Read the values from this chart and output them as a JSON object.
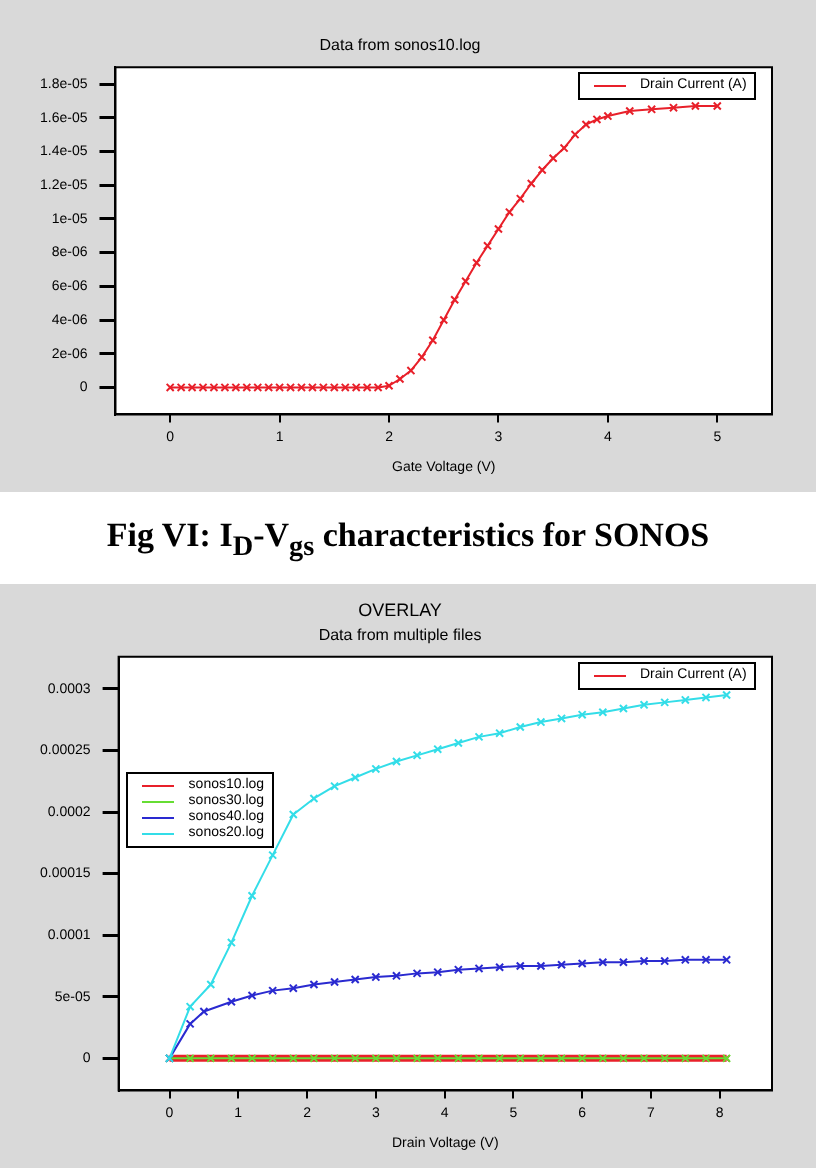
{
  "chart_data": [
    {
      "type": "line",
      "subtitle": "Data from sonos10.log",
      "xlabel": "Gate Voltage (V)",
      "annotations": [
        "Fig VI: I$_{D}$-V$_{gs}$ characteristics for SONOS"
      ],
      "legend": "top right",
      "marker": "cross",
      "grid": false,
      "xlim": [
        -0.5,
        5.5
      ],
      "xticks": [
        0,
        1,
        2,
        3,
        4,
        5
      ],
      "ylim": [
        -1.6e-06,
        1.9e-05
      ],
      "yticks": [
        0,
        {
          "value": 2e-06,
          "label": "2e-06"
        },
        {
          "value": 4e-06,
          "label": "4e-06"
        },
        {
          "value": 6e-06,
          "label": "6e-06"
        },
        {
          "value": 8e-06,
          "label": "8e-06"
        },
        {
          "value": 1e-05,
          "label": "1e-05"
        },
        {
          "value": 1.2e-05,
          "label": "1.2e-05"
        },
        {
          "value": 1.4e-05,
          "label": "1.4e-05"
        },
        {
          "value": 1.6e-05,
          "label": "1.6e-05"
        },
        {
          "value": 1.8e-05,
          "label": "1.8e-05"
        }
      ],
      "series": [
        {
          "name": "Drain Current (A)",
          "color": "#e8202a",
          "x": [
            0,
            0.1,
            0.2,
            0.3,
            0.4,
            0.5,
            0.6,
            0.7,
            0.8,
            0.9,
            1.0,
            1.1,
            1.2,
            1.3,
            1.4,
            1.5,
            1.6,
            1.7,
            1.8,
            1.9,
            2.0,
            2.1,
            2.2,
            2.3,
            2.4,
            2.5,
            2.6,
            2.7,
            2.8,
            2.9,
            3.0,
            3.1,
            3.2,
            3.3,
            3.4,
            3.5,
            3.6,
            3.7,
            3.8,
            3.9,
            4.0,
            4.2,
            4.4,
            4.6,
            4.8,
            5.0
          ],
          "values": [
            0,
            0,
            0,
            0,
            0,
            0,
            0,
            0,
            0,
            0,
            0,
            0,
            0,
            0,
            0,
            0,
            0,
            0,
            0,
            0,
            1e-07,
            5e-07,
            1e-06,
            1.8e-06,
            2.8e-06,
            4e-06,
            5.2e-06,
            6.3e-06,
            7.4e-06,
            8.4e-06,
            9.4e-06,
            1.04e-05,
            1.12e-05,
            1.21e-05,
            1.29e-05,
            1.36e-05,
            1.42e-05,
            1.5e-05,
            1.56e-05,
            1.59e-05,
            1.61e-05,
            1.64e-05,
            1.65e-05,
            1.66e-05,
            1.67e-05,
            1.67e-05
          ]
        }
      ]
    },
    {
      "type": "line",
      "title": "OVERLAY",
      "subtitle": "Data from multiple files",
      "xlabel": "Drain Voltage (V)",
      "legend_title": "Drain Current (A)",
      "legend": "left",
      "marker": "cross",
      "grid": false,
      "xlim": [
        -0.74,
        8.76
      ],
      "xticks": [
        0,
        1,
        2,
        3,
        4,
        5,
        6,
        7,
        8
      ],
      "ylim": [
        -2.6e-05,
        0.000326
      ],
      "yticks": [
        0,
        {
          "value": 5e-05,
          "label": "5e-05"
        },
        0.0001,
        0.00015,
        0.0002,
        0.00025,
        0.0003
      ],
      "series": [
        {
          "name": "sonos10.log",
          "color": "#e8202a",
          "x": [
            0,
            0.3,
            0.6,
            0.9,
            1.2,
            1.5,
            1.8,
            2.1,
            2.4,
            2.7,
            3.0,
            3.3,
            3.6,
            3.9,
            4.2,
            4.5,
            4.8,
            5.1,
            5.4,
            5.7,
            6.0,
            6.3,
            6.6,
            6.9,
            7.2,
            7.5,
            7.8,
            8.1
          ],
          "values": [
            0,
            0,
            0,
            0,
            0,
            0,
            0,
            0,
            0,
            0,
            0,
            0,
            0,
            0,
            0,
            0,
            0,
            0,
            0,
            0,
            0,
            0,
            0,
            0,
            0,
            0,
            0,
            0
          ]
        },
        {
          "name": "sonos30.log",
          "color": "#66dd33",
          "x": [
            0,
            0.3,
            0.6,
            0.9,
            1.2,
            1.5,
            1.8,
            2.1,
            2.4,
            2.7,
            3.0,
            3.3,
            3.6,
            3.9,
            4.2,
            4.5,
            4.8,
            5.1,
            5.4,
            5.7,
            6.0,
            6.3,
            6.6,
            6.9,
            7.2,
            7.5,
            7.8,
            8.1
          ],
          "values": [
            0,
            0,
            0,
            0,
            0,
            0,
            0,
            0,
            0,
            0,
            0,
            0,
            0,
            0,
            0,
            0,
            0,
            0,
            0,
            0,
            0,
            0,
            0,
            0,
            0,
            0,
            0,
            0
          ]
        },
        {
          "name": "sonos40.log",
          "color": "#2a2ad0",
          "x": [
            0,
            0.3,
            0.5,
            0.9,
            1.2,
            1.5,
            1.8,
            2.1,
            2.4,
            2.7,
            3.0,
            3.3,
            3.6,
            3.9,
            4.2,
            4.5,
            4.8,
            5.1,
            5.4,
            5.7,
            6.0,
            6.3,
            6.6,
            6.9,
            7.2,
            7.5,
            7.8,
            8.1
          ],
          "values": [
            0,
            2.8e-05,
            3.8e-05,
            4.6e-05,
            5.1e-05,
            5.5e-05,
            5.7e-05,
            6e-05,
            6.2e-05,
            6.4e-05,
            6.6e-05,
            6.7e-05,
            6.9e-05,
            7e-05,
            7.2e-05,
            7.3e-05,
            7.4e-05,
            7.5e-05,
            7.5e-05,
            7.6e-05,
            7.7e-05,
            7.8e-05,
            7.8e-05,
            7.9e-05,
            7.9e-05,
            8e-05,
            8e-05,
            8e-05
          ]
        },
        {
          "name": "sonos20.log",
          "color": "#33dde8",
          "x": [
            0,
            0.3,
            0.6,
            0.9,
            1.2,
            1.5,
            1.8,
            2.1,
            2.4,
            2.7,
            3.0,
            3.3,
            3.6,
            3.9,
            4.2,
            4.5,
            4.8,
            5.1,
            5.4,
            5.7,
            6.0,
            6.3,
            6.6,
            6.9,
            7.2,
            7.5,
            7.8,
            8.1
          ],
          "values": [
            0,
            4.2e-05,
            6e-05,
            9.4e-05,
            0.000132,
            0.000165,
            0.000198,
            0.000211,
            0.000221,
            0.000228,
            0.000235,
            0.000241,
            0.000246,
            0.000251,
            0.000256,
            0.000261,
            0.000264,
            0.000269,
            0.000273,
            0.000276,
            0.000279,
            0.000281,
            0.000284,
            0.000287,
            0.000289,
            0.000291,
            0.000293,
            0.000295
          ]
        }
      ]
    }
  ]
}
